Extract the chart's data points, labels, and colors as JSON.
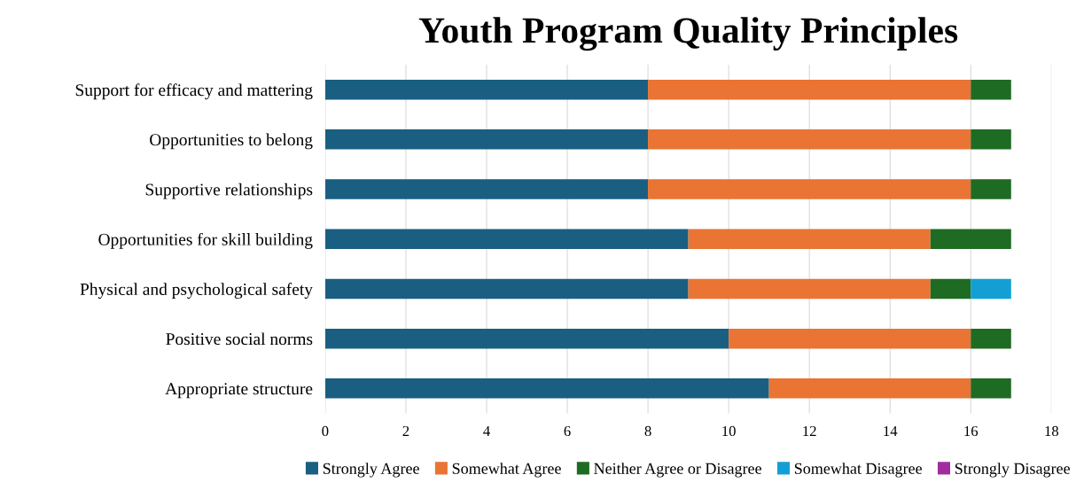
{
  "chart_data": {
    "type": "bar",
    "title": "Youth Program Quality Principles",
    "orientation": "horizontal",
    "stacked": true,
    "categories": [
      "Support for efficacy and mattering",
      "Opportunities to belong",
      "Supportive relationships",
      "Opportunities for skill building",
      "Physical and psychological safety",
      "Positive social norms",
      "Appropriate structure"
    ],
    "series": [
      {
        "name": "Strongly Agree",
        "color": "#1a5f82",
        "values": [
          8,
          8,
          8,
          9,
          9,
          10,
          11
        ]
      },
      {
        "name": "Somewhat Agree",
        "color": "#e97433",
        "values": [
          8,
          8,
          8,
          6,
          6,
          6,
          5
        ]
      },
      {
        "name": "Neither Agree or Disagree",
        "color": "#1e6b24",
        "values": [
          1,
          1,
          1,
          2,
          1,
          1,
          1
        ]
      },
      {
        "name": "Somewhat Disagree",
        "color": "#139fd4",
        "values": [
          0,
          0,
          0,
          0,
          1,
          0,
          0
        ]
      },
      {
        "name": "Strongly Disagree",
        "color": "#a12ca0",
        "values": [
          0,
          0,
          0,
          0,
          0,
          0,
          0
        ]
      }
    ],
    "xlim": [
      0,
      18
    ],
    "xticks": [
      0,
      2,
      4,
      6,
      8,
      10,
      12,
      14,
      16,
      18
    ],
    "grid": "x",
    "legend": "bottom"
  }
}
